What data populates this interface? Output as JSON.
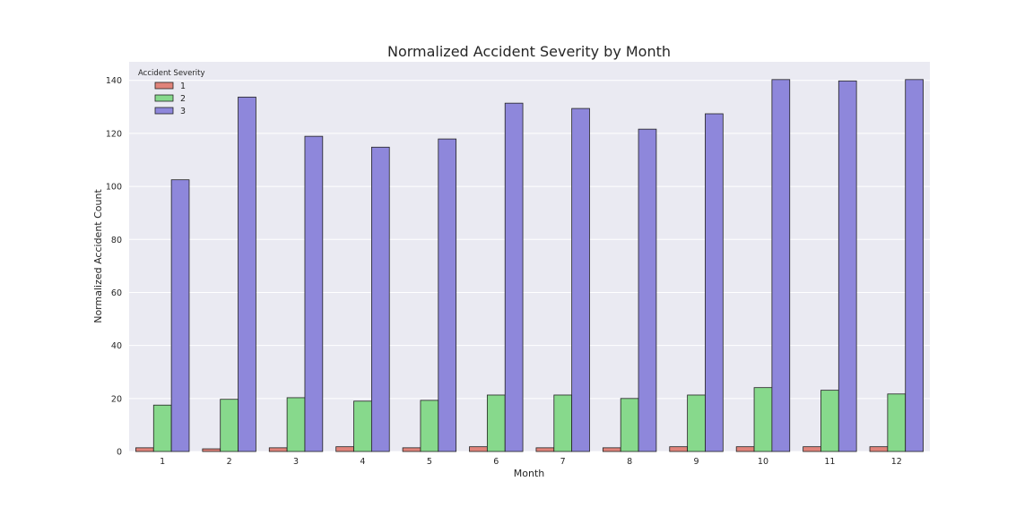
{
  "chart_data": {
    "type": "bar",
    "title": "Normalized Accident Severity by Month",
    "xlabel": "Month",
    "ylabel": "Normalized Accident Count",
    "categories": [
      "1",
      "2",
      "3",
      "4",
      "5",
      "6",
      "7",
      "8",
      "9",
      "10",
      "11",
      "12"
    ],
    "ylim": [
      0,
      147
    ],
    "yticks": [
      0,
      20,
      40,
      60,
      80,
      100,
      120,
      140
    ],
    "grid": true,
    "legend": {
      "title": "Accident Severity",
      "placement": "top-left"
    },
    "series": [
      {
        "name": "1",
        "color": "#e0837a",
        "values": [
          1.4,
          1.0,
          1.4,
          1.8,
          1.4,
          1.8,
          1.4,
          1.4,
          1.8,
          1.8,
          1.8,
          1.8
        ]
      },
      {
        "name": "2",
        "color": "#87d98c",
        "values": [
          17.5,
          19.7,
          20.3,
          19.0,
          19.3,
          21.3,
          21.3,
          20.0,
          21.3,
          24.1,
          23.1,
          21.7
        ]
      },
      {
        "name": "3",
        "color": "#8e87db",
        "values": [
          102.5,
          133.7,
          118.9,
          114.8,
          117.9,
          131.4,
          129.4,
          121.6,
          127.4,
          140.3,
          139.8,
          140.3
        ]
      }
    ]
  }
}
